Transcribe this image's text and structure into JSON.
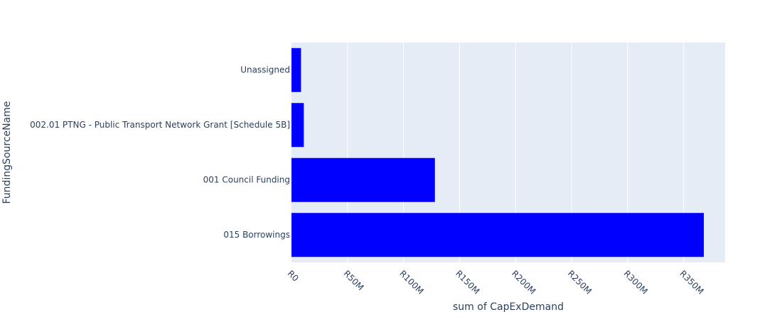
{
  "colors": {
    "bar": "#0000ff",
    "plot_background": "#e5ecf6",
    "grid": "#ffffff",
    "text": "#2a3f5f"
  },
  "chart_data": {
    "type": "bar",
    "orientation": "horizontal",
    "xlabel": "sum of CapExDemand",
    "ylabel": "FundingSourceName",
    "xlim": [
      0,
      387
    ],
    "x_ticks": [
      {
        "value": 0,
        "label": "R0"
      },
      {
        "value": 50,
        "label": "R50M"
      },
      {
        "value": 100,
        "label": "R100M"
      },
      {
        "value": 150,
        "label": "R150M"
      },
      {
        "value": 200,
        "label": "R200M"
      },
      {
        "value": 250,
        "label": "R250M"
      },
      {
        "value": 300,
        "label": "R300M"
      },
      {
        "value": 350,
        "label": "R350M"
      }
    ],
    "categories": [
      "Unassigned",
      "002.01 PTNG - Public Transport Network Grant [Schedule 5B]",
      "001 Council Funding",
      "015 Borrowings"
    ],
    "values": [
      8.5,
      11,
      128,
      368
    ],
    "grid": true,
    "legend": false
  }
}
